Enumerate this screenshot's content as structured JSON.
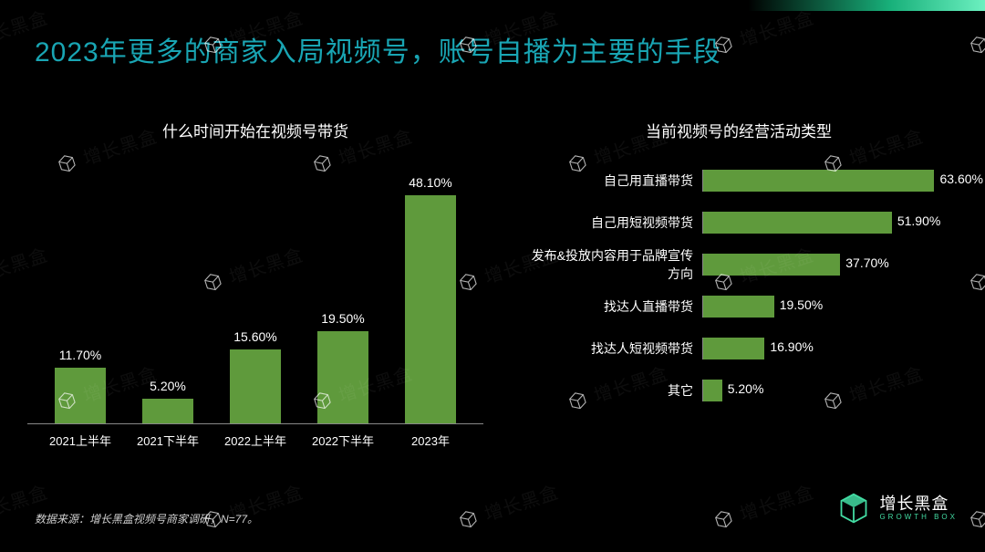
{
  "title": {
    "text": "2023年更多的商家入局视频号，账号自播为主要的手段",
    "color": "#19a5b3",
    "fontsize": 30
  },
  "colors": {
    "background": "#000000",
    "bar_fill": "#5f9a3c",
    "text": "#ffffff",
    "axis": "#888888",
    "accent": "#43dca3"
  },
  "left_chart": {
    "type": "bar",
    "title": "什么时间开始在视频号带货",
    "categories": [
      "2021上半年",
      "2021下半年",
      "2022上半年",
      "2022下半年",
      "2023年"
    ],
    "values": [
      11.7,
      5.2,
      15.6,
      19.5,
      48.1
    ],
    "value_labels": [
      "11.70%",
      "5.20%",
      "15.60%",
      "19.50%",
      "48.10%"
    ],
    "ylim": [
      0,
      50
    ],
    "bar_color": "#5f9a3c",
    "label_fontsize": 14,
    "title_fontsize": 17
  },
  "right_chart": {
    "type": "hbar",
    "title": "当前视频号的经营活动类型",
    "items": [
      {
        "label": "自己用直播带货",
        "value": 63.6,
        "value_label": "63.60%"
      },
      {
        "label": "自己用短视频带货",
        "value": 51.9,
        "value_label": "51.90%"
      },
      {
        "label": "发布&投放内容用于品牌宣传方向",
        "value": 37.7,
        "value_label": "37.70%"
      },
      {
        "label": "找达人直播带货",
        "value": 19.5,
        "value_label": "19.50%"
      },
      {
        "label": "找达人短视频带货",
        "value": 16.9,
        "value_label": "16.90%"
      },
      {
        "label": "其它",
        "value": 5.2,
        "value_label": "5.20%"
      }
    ],
    "xlim": [
      0,
      70
    ],
    "bar_color": "#5f9a3c",
    "label_fontsize": 14,
    "title_fontsize": 17
  },
  "footnote": "数据来源：增长黑盒视频号商家调研，N=77。",
  "brand": {
    "cn": "增长黑盒",
    "en": "GROWTH BOX"
  },
  "watermark": "增长黑盒"
}
